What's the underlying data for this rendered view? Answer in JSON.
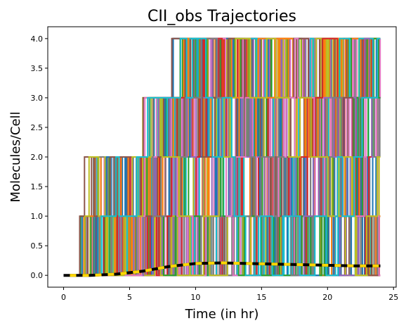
{
  "chart_data": {
    "type": "line",
    "title": "CII_obs Trajectories",
    "xlabel": "Time (in hr)",
    "ylabel": "Molecules/Cell",
    "xlim": [
      -1.2,
      25.2
    ],
    "ylim": [
      -0.2,
      4.2
    ],
    "xticks": [
      0,
      5,
      10,
      15,
      20,
      25
    ],
    "yticks": [
      0.0,
      0.5,
      1.0,
      1.5,
      2.0,
      2.5,
      3.0,
      3.5,
      4.0
    ],
    "xtick_labels": [
      "0",
      "5",
      "10",
      "15",
      "20",
      "25"
    ],
    "ytick_labels": [
      "0.0",
      "0.5",
      "1.0",
      "1.5",
      "2.0",
      "2.5",
      "3.0",
      "3.5",
      "4.0"
    ],
    "grid": false,
    "legend": "none",
    "trajectory_count": 60,
    "trajectory_time_range": [
      0,
      24
    ],
    "trajectory_value_levels": [
      0,
      1,
      2,
      3,
      4
    ],
    "trajectory_colors": [
      "#1f77b4",
      "#ff7f0e",
      "#2ca02c",
      "#d62728",
      "#9467bd",
      "#8c564b",
      "#e377c2",
      "#7f7f7f",
      "#bcbd22",
      "#17becf"
    ],
    "mean_line": {
      "x": [
        0,
        2,
        4,
        6,
        8,
        10,
        12,
        14,
        16,
        18,
        20,
        22,
        24
      ],
      "y": [
        0.0,
        0.0,
        0.02,
        0.07,
        0.15,
        0.2,
        0.21,
        0.2,
        0.19,
        0.18,
        0.17,
        0.16,
        0.16
      ],
      "color": "#000000",
      "dash_color": "#ffd700"
    }
  }
}
